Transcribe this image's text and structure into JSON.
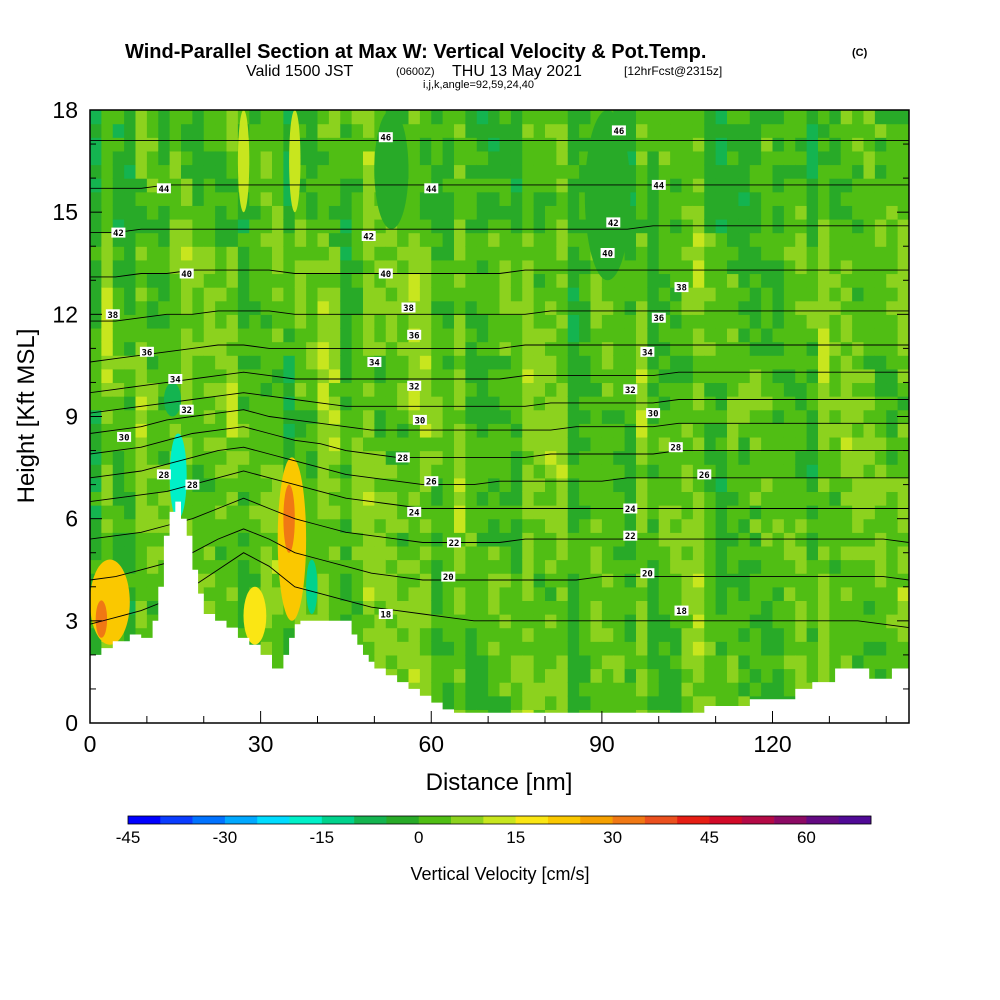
{
  "header": {
    "title": "Wind-Parallel Section at Max W: Vertical Velocity & Pot.Temp.",
    "copyright": "(C)",
    "valid_prefix": "Valid 1500 JST",
    "valid_z": "(0600Z)",
    "valid_date": "THU 13 May 2021",
    "forecast": "[12hrFcst@2315z]",
    "indices": "i,j,k,angle=92,59,24,40"
  },
  "chart_data": {
    "type": "contour",
    "xlabel": "Distance [nm]",
    "ylabel": "Height [Kft MSL]",
    "xlim": [
      0,
      144
    ],
    "ylim": [
      0,
      18
    ],
    "xticks": [
      0,
      30,
      60,
      90,
      120
    ],
    "yticks": [
      0,
      3,
      6,
      9,
      12,
      15,
      18
    ],
    "filled_variable": "Vertical Velocity",
    "contour_variable": "Potential Temperature",
    "terrain_profile": [
      [
        0,
        2.0
      ],
      [
        2,
        2.0
      ],
      [
        2,
        2.2
      ],
      [
        4,
        2.2
      ],
      [
        4,
        2.4
      ],
      [
        7,
        2.4
      ],
      [
        7,
        2.6
      ],
      [
        9,
        2.6
      ],
      [
        9,
        2.5
      ],
      [
        11,
        2.5
      ],
      [
        11,
        3.0
      ],
      [
        12,
        3.0
      ],
      [
        12,
        4.0
      ],
      [
        13,
        4.0
      ],
      [
        13,
        5.5
      ],
      [
        14,
        5.5
      ],
      [
        14,
        6.2
      ],
      [
        15,
        6.2
      ],
      [
        15,
        6.5
      ],
      [
        16,
        6.5
      ],
      [
        16,
        6.0
      ],
      [
        17,
        6.0
      ],
      [
        17,
        5.5
      ],
      [
        18,
        5.5
      ],
      [
        18,
        4.5
      ],
      [
        19,
        4.5
      ],
      [
        19,
        3.8
      ],
      [
        20,
        3.8
      ],
      [
        20,
        3.2
      ],
      [
        22,
        3.2
      ],
      [
        22,
        3.0
      ],
      [
        24,
        3.0
      ],
      [
        24,
        2.8
      ],
      [
        26,
        2.8
      ],
      [
        26,
        2.5
      ],
      [
        28,
        2.5
      ],
      [
        28,
        2.3
      ],
      [
        30,
        2.3
      ],
      [
        30,
        2.0
      ],
      [
        32,
        2.0
      ],
      [
        32,
        1.6
      ],
      [
        34,
        1.6
      ],
      [
        34,
        2.0
      ],
      [
        35,
        2.0
      ],
      [
        35,
        2.5
      ],
      [
        36,
        2.5
      ],
      [
        36,
        2.9
      ],
      [
        37,
        2.9
      ],
      [
        37,
        3.0
      ],
      [
        46,
        3.0
      ],
      [
        46,
        2.6
      ],
      [
        47,
        2.6
      ],
      [
        47,
        2.3
      ],
      [
        48,
        2.3
      ],
      [
        48,
        2.0
      ],
      [
        49,
        2.0
      ],
      [
        49,
        1.8
      ],
      [
        50,
        1.8
      ],
      [
        50,
        1.6
      ],
      [
        52,
        1.6
      ],
      [
        52,
        1.4
      ],
      [
        54,
        1.4
      ],
      [
        54,
        1.2
      ],
      [
        56,
        1.2
      ],
      [
        56,
        1.0
      ],
      [
        58,
        1.0
      ],
      [
        58,
        0.8
      ],
      [
        60,
        0.8
      ],
      [
        60,
        0.6
      ],
      [
        62,
        0.6
      ],
      [
        62,
        0.4
      ],
      [
        64,
        0.4
      ],
      [
        64,
        0.3
      ],
      [
        108,
        0.3
      ],
      [
        108,
        0.5
      ],
      [
        116,
        0.5
      ],
      [
        116,
        0.7
      ],
      [
        124,
        0.7
      ],
      [
        124,
        1.0
      ],
      [
        127,
        1.0
      ],
      [
        127,
        1.2
      ],
      [
        131,
        1.2
      ],
      [
        131,
        1.6
      ],
      [
        137,
        1.6
      ],
      [
        137,
        1.3
      ],
      [
        141,
        1.3
      ],
      [
        141,
        1.6
      ],
      [
        144,
        1.6
      ]
    ],
    "isentropes": [
      {
        "level": 18,
        "heights": [
          2.9,
          3.1,
          3.3,
          3.6,
          4.0,
          4.5,
          5.0,
          4.6,
          4.0,
          3.8,
          3.6,
          3.4,
          3.3,
          3.2,
          3.1,
          3.0,
          3.0,
          3.0,
          3.0,
          3.0,
          3.0,
          3.0,
          3.0,
          3.0,
          3.0,
          3.0,
          3.0,
          3.0,
          3.0,
          3.0,
          3.0,
          2.9,
          2.8
        ]
      },
      {
        "level": 20,
        "heights": [
          4.2,
          4.3,
          4.5,
          4.7,
          5.0,
          5.4,
          5.7,
          5.4,
          5.0,
          4.8,
          4.6,
          4.4,
          4.3,
          4.2,
          4.2,
          4.2,
          4.2,
          4.2,
          4.2,
          4.2,
          4.3,
          4.3,
          4.3,
          4.3,
          4.3,
          4.3,
          4.3,
          4.3,
          4.3,
          4.3,
          4.3,
          4.3,
          4.2
        ]
      },
      {
        "level": 22,
        "heights": [
          5.4,
          5.5,
          5.6,
          5.8,
          6.0,
          6.3,
          6.6,
          6.3,
          6.0,
          5.8,
          5.6,
          5.5,
          5.4,
          5.3,
          5.3,
          5.3,
          5.3,
          5.4,
          5.4,
          5.4,
          5.4,
          5.4,
          5.4,
          5.4,
          5.4,
          5.4,
          5.4,
          5.4,
          5.4,
          5.4,
          5.4,
          5.4,
          5.3
        ]
      },
      {
        "level": 24,
        "heights": [
          6.5,
          6.6,
          6.7,
          6.8,
          7.0,
          7.2,
          7.4,
          7.2,
          7.0,
          6.8,
          6.6,
          6.5,
          6.4,
          6.3,
          6.3,
          6.3,
          6.3,
          6.3,
          6.3,
          6.3,
          6.3,
          6.3,
          6.3,
          6.3,
          6.3,
          6.3,
          6.3,
          6.3,
          6.3,
          6.3,
          6.3,
          6.3,
          6.3
        ]
      },
      {
        "level": 26,
        "heights": [
          7.2,
          7.3,
          7.4,
          7.6,
          7.8,
          8.0,
          8.1,
          7.9,
          7.7,
          7.5,
          7.3,
          7.2,
          7.1,
          7.0,
          7.0,
          7.0,
          7.1,
          7.1,
          7.1,
          7.1,
          7.1,
          7.2,
          7.2,
          7.2,
          7.2,
          7.2,
          7.2,
          7.2,
          7.2,
          7.2,
          7.2,
          7.2,
          7.2
        ]
      },
      {
        "level": 28,
        "heights": [
          7.9,
          8.0,
          8.1,
          8.3,
          8.5,
          8.6,
          8.7,
          8.5,
          8.3,
          8.2,
          8.0,
          7.9,
          7.8,
          7.8,
          7.8,
          7.8,
          7.8,
          7.8,
          7.9,
          7.9,
          7.9,
          7.9,
          7.9,
          8.0,
          8.0,
          8.0,
          8.0,
          8.0,
          8.0,
          8.0,
          8.0,
          8.0,
          8.0
        ]
      },
      {
        "level": 30,
        "heights": [
          8.5,
          8.6,
          8.7,
          8.9,
          9.0,
          9.1,
          9.2,
          9.0,
          8.9,
          8.8,
          8.7,
          8.6,
          8.6,
          8.6,
          8.6,
          8.6,
          8.6,
          8.6,
          8.6,
          8.7,
          8.7,
          8.7,
          8.7,
          8.8,
          8.8,
          8.8,
          8.8,
          8.8,
          8.8,
          8.8,
          8.8,
          8.8,
          8.8
        ]
      },
      {
        "level": 32,
        "heights": [
          9.1,
          9.2,
          9.3,
          9.4,
          9.5,
          9.6,
          9.7,
          9.6,
          9.5,
          9.4,
          9.3,
          9.3,
          9.3,
          9.3,
          9.3,
          9.3,
          9.3,
          9.3,
          9.4,
          9.4,
          9.4,
          9.4,
          9.4,
          9.5,
          9.5,
          9.5,
          9.5,
          9.5,
          9.5,
          9.5,
          9.5,
          9.5,
          9.5
        ]
      },
      {
        "level": 34,
        "heights": [
          9.7,
          9.8,
          9.9,
          10.0,
          10.1,
          10.2,
          10.3,
          10.2,
          10.1,
          10.1,
          10.1,
          10.1,
          10.1,
          10.1,
          10.1,
          10.1,
          10.1,
          10.2,
          10.2,
          10.2,
          10.2,
          10.2,
          10.2,
          10.3,
          10.3,
          10.3,
          10.3,
          10.3,
          10.3,
          10.3,
          10.3,
          10.3,
          10.3
        ]
      },
      {
        "level": 36,
        "heights": [
          10.6,
          10.7,
          10.8,
          10.9,
          11.0,
          11.1,
          11.1,
          11.0,
          11.0,
          11.0,
          11.0,
          11.0,
          11.0,
          11.0,
          11.0,
          11.0,
          11.0,
          11.1,
          11.1,
          11.1,
          11.1,
          11.1,
          11.1,
          11.1,
          11.1,
          11.1,
          11.1,
          11.1,
          11.1,
          11.1,
          11.1,
          11.1,
          11.1
        ]
      },
      {
        "level": 38,
        "heights": [
          11.8,
          11.8,
          11.9,
          12.0,
          12.0,
          12.1,
          12.1,
          12.1,
          12.0,
          12.0,
          12.0,
          12.0,
          12.0,
          12.0,
          12.0,
          12.0,
          12.0,
          12.0,
          12.1,
          12.1,
          12.1,
          12.1,
          12.1,
          12.1,
          12.1,
          12.1,
          12.1,
          12.1,
          12.1,
          12.1,
          12.1,
          12.1,
          12.1
        ]
      },
      {
        "level": 40,
        "heights": [
          13.1,
          13.1,
          13.2,
          13.2,
          13.3,
          13.3,
          13.3,
          13.3,
          13.2,
          13.2,
          13.2,
          13.2,
          13.2,
          13.2,
          13.2,
          13.2,
          13.2,
          13.3,
          13.3,
          13.3,
          13.3,
          13.3,
          13.3,
          13.3,
          13.3,
          13.3,
          13.3,
          13.3,
          13.3,
          13.3,
          13.3,
          13.3,
          13.3
        ]
      },
      {
        "level": 42,
        "heights": [
          14.4,
          14.4,
          14.5,
          14.5,
          14.5,
          14.5,
          14.5,
          14.5,
          14.5,
          14.5,
          14.5,
          14.5,
          14.5,
          14.5,
          14.5,
          14.5,
          14.5,
          14.5,
          14.5,
          14.5,
          14.5,
          14.5,
          14.6,
          14.6,
          14.6,
          14.6,
          14.6,
          14.6,
          14.6,
          14.6,
          14.6,
          14.6,
          14.6
        ]
      },
      {
        "level": 44,
        "heights": [
          15.7,
          15.7,
          15.7,
          15.8,
          15.8,
          15.8,
          15.8,
          15.8,
          15.8,
          15.8,
          15.8,
          15.8,
          15.8,
          15.8,
          15.8,
          15.8,
          15.8,
          15.8,
          15.8,
          15.8,
          15.8,
          15.8,
          15.8,
          15.8,
          15.8,
          15.8,
          15.8,
          15.8,
          15.8,
          15.8,
          15.8,
          15.8,
          15.8
        ]
      },
      {
        "level": 46,
        "heights": [
          17.1,
          17.1,
          17.1,
          17.1,
          17.1,
          17.1,
          17.1,
          17.1,
          17.1,
          17.1,
          17.1,
          17.1,
          17.1,
          17.1,
          17.1,
          17.1,
          17.1,
          17.1,
          17.1,
          17.1,
          17.1,
          17.1,
          17.1,
          17.1,
          17.1,
          17.1,
          17.1,
          17.1,
          17.1,
          17.1,
          17.1,
          17.1,
          17.1
        ]
      }
    ],
    "isentrope_x_step": 4.5,
    "contour_labels": [
      {
        "text": "46",
        "x": 52,
        "y": 17.2
      },
      {
        "text": "46",
        "x": 93,
        "y": 17.4
      },
      {
        "text": "44",
        "x": 13,
        "y": 15.7
      },
      {
        "text": "44",
        "x": 60,
        "y": 15.7
      },
      {
        "text": "44",
        "x": 100,
        "y": 15.8
      },
      {
        "text": "42",
        "x": 5,
        "y": 14.4
      },
      {
        "text": "42",
        "x": 49,
        "y": 14.3
      },
      {
        "text": "42",
        "x": 92,
        "y": 14.7
      },
      {
        "text": "40",
        "x": 17,
        "y": 13.2
      },
      {
        "text": "40",
        "x": 52,
        "y": 13.2
      },
      {
        "text": "40",
        "x": 91,
        "y": 13.8
      },
      {
        "text": "38",
        "x": 104,
        "y": 12.8
      },
      {
        "text": "38",
        "x": 4,
        "y": 12.0
      },
      {
        "text": "38",
        "x": 56,
        "y": 12.2
      },
      {
        "text": "36",
        "x": 100,
        "y": 11.9
      },
      {
        "text": "36",
        "x": 57,
        "y": 11.4
      },
      {
        "text": "36",
        "x": 10,
        "y": 10.9
      },
      {
        "text": "34",
        "x": 98,
        "y": 10.9
      },
      {
        "text": "34",
        "x": 50,
        "y": 10.6
      },
      {
        "text": "34",
        "x": 15,
        "y": 10.1
      },
      {
        "text": "32",
        "x": 57,
        "y": 9.9
      },
      {
        "text": "32",
        "x": 95,
        "y": 9.8
      },
      {
        "text": "32",
        "x": 17,
        "y": 9.2
      },
      {
        "text": "30",
        "x": 99,
        "y": 9.1
      },
      {
        "text": "30",
        "x": 58,
        "y": 8.9
      },
      {
        "text": "30",
        "x": 6,
        "y": 8.4
      },
      {
        "text": "28",
        "x": 103,
        "y": 8.1
      },
      {
        "text": "28",
        "x": 55,
        "y": 7.8
      },
      {
        "text": "28",
        "x": 13,
        "y": 7.3
      },
      {
        "text": "28",
        "x": 18,
        "y": 7.0
      },
      {
        "text": "26",
        "x": 108,
        "y": 7.3
      },
      {
        "text": "26",
        "x": 60,
        "y": 7.1
      },
      {
        "text": "24",
        "x": 95,
        "y": 6.3
      },
      {
        "text": "24",
        "x": 57,
        "y": 6.2
      },
      {
        "text": "22",
        "x": 95,
        "y": 5.5
      },
      {
        "text": "22",
        "x": 64,
        "y": 5.3
      },
      {
        "text": "20",
        "x": 98,
        "y": 4.4
      },
      {
        "text": "20",
        "x": 63,
        "y": 4.3
      },
      {
        "text": "18",
        "x": 104,
        "y": 3.3
      },
      {
        "text": "18",
        "x": 52,
        "y": 3.2
      }
    ],
    "velocity_features": [
      {
        "x": [
          0,
          7
        ],
        "y": [
          2.3,
          4.8
        ],
        "w": 22
      },
      {
        "x": [
          1,
          3
        ],
        "y": [
          2.5,
          3.6
        ],
        "w": 30
      },
      {
        "x": [
          14,
          17
        ],
        "y": [
          6.0,
          8.5
        ],
        "w": -20
      },
      {
        "x": [
          13,
          16
        ],
        "y": [
          9.0,
          10.0
        ],
        "w": -8
      },
      {
        "x": [
          33,
          38
        ],
        "y": [
          3.0,
          7.8
        ],
        "w": 24
      },
      {
        "x": [
          34,
          36
        ],
        "y": [
          5.0,
          7.0
        ],
        "w": 32
      },
      {
        "x": [
          38,
          40
        ],
        "y": [
          3.2,
          4.8
        ],
        "w": -12
      },
      {
        "x": [
          27,
          31
        ],
        "y": [
          2.3,
          4.0
        ],
        "w": 15
      },
      {
        "x": [
          26,
          28
        ],
        "y": [
          15.0,
          18.0
        ],
        "w": 12
      },
      {
        "x": [
          35,
          37
        ],
        "y": [
          15.0,
          18.0
        ],
        "w": 10
      },
      {
        "x": [
          50,
          56
        ],
        "y": [
          14.5,
          18.0
        ],
        "w": -4
      },
      {
        "x": [
          87,
          95
        ],
        "y": [
          13.0,
          18.0
        ],
        "w": -4
      }
    ],
    "colorbar": {
      "label": "Vertical Velocity [cm/s]",
      "min": -45,
      "max": 70,
      "step": 5,
      "ticks": [
        -45,
        -30,
        -15,
        0,
        15,
        30,
        45,
        60
      ],
      "colors": [
        "#0000ff",
        "#0a3cff",
        "#0072ff",
        "#00a8ff",
        "#00dcff",
        "#00f0c8",
        "#00d28c",
        "#14b450",
        "#28aa28",
        "#50be14",
        "#8cd21e",
        "#c8e61e",
        "#fae614",
        "#fac800",
        "#f5a000",
        "#f07814",
        "#eb501e",
        "#e61e14",
        "#d20a28",
        "#b40a46",
        "#8c0a64",
        "#640a82",
        "#500a96"
      ]
    }
  }
}
